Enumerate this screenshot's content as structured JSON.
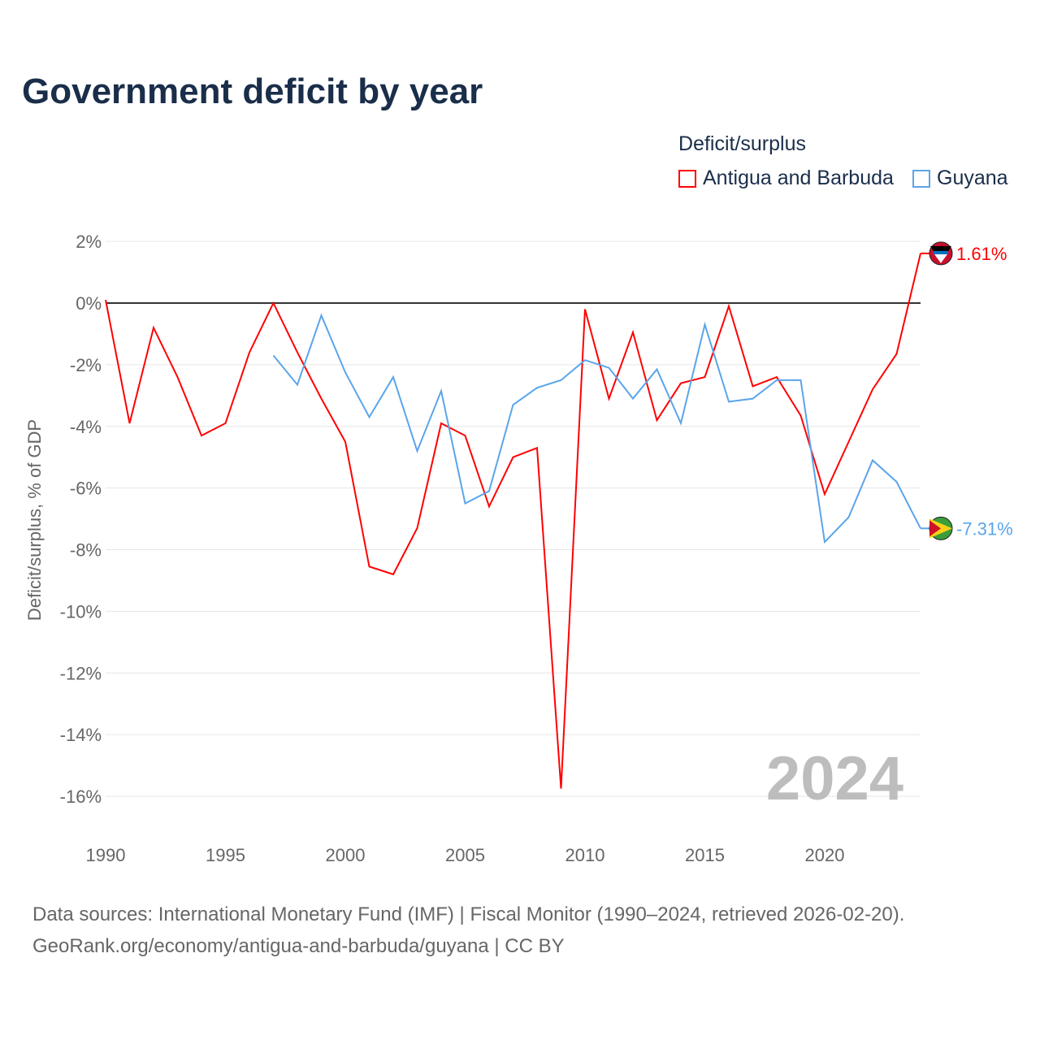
{
  "title": "Government deficit by year",
  "legend": {
    "title": "Deficit/surplus"
  },
  "footer": {
    "line1": "Data sources: International Monetary Fund (IMF) | Fiscal Monitor (1990–2024, retrieved 2026-02-20).",
    "line2": "GeoRank.org/economy/antigua-and-barbuda/guyana | CC BY"
  },
  "chart_data": {
    "type": "line",
    "title": "Government deficit by year",
    "ylabel": "Deficit/surplus, % of GDP",
    "xlabel": "",
    "xlim": [
      1990,
      2024
    ],
    "ylim": [
      -17,
      2.5
    ],
    "xticks": [
      1990,
      1995,
      2000,
      2005,
      2010,
      2015,
      2020
    ],
    "yticks": [
      2,
      0,
      -2,
      -4,
      -6,
      -8,
      -10,
      -12,
      -14,
      -16
    ],
    "year_watermark": "2024",
    "series": [
      {
        "name": "Antigua and Barbuda",
        "color": "#ff0000",
        "end_label": "1.61%",
        "x": [
          1990,
          1991,
          1992,
          1993,
          1994,
          1995,
          1996,
          1997,
          1998,
          1999,
          2000,
          2001,
          2002,
          2003,
          2004,
          2005,
          2006,
          2007,
          2008,
          2009,
          2010,
          2011,
          2012,
          2013,
          2014,
          2015,
          2016,
          2017,
          2018,
          2019,
          2020,
          2021,
          2022,
          2023,
          2024
        ],
        "values": [
          0.1,
          -3.9,
          -0.8,
          -2.4,
          -4.3,
          -3.9,
          -1.6,
          0.0,
          -1.6,
          -3.1,
          -4.5,
          -8.55,
          -8.8,
          -7.3,
          -3.9,
          -4.3,
          -6.6,
          -5.0,
          -4.7,
          -15.75,
          -0.2,
          -3.1,
          -0.95,
          -3.8,
          -2.6,
          -2.4,
          -0.1,
          -2.7,
          -2.4,
          -3.65,
          -6.2,
          -4.5,
          -2.8,
          -1.65,
          1.61
        ]
      },
      {
        "name": "Guyana",
        "color": "#5aa5ea",
        "end_label": "-7.31%",
        "x": [
          1997,
          1998,
          1999,
          2000,
          2001,
          2002,
          2003,
          2004,
          2005,
          2006,
          2007,
          2008,
          2009,
          2010,
          2011,
          2012,
          2013,
          2014,
          2015,
          2016,
          2017,
          2018,
          2019,
          2020,
          2021,
          2022,
          2023,
          2024
        ],
        "values": [
          -1.7,
          -2.65,
          -0.4,
          -2.25,
          -3.7,
          -2.4,
          -4.8,
          -2.85,
          -6.5,
          -6.1,
          -3.3,
          -2.75,
          -2.5,
          -1.85,
          -2.1,
          -3.1,
          -2.15,
          -3.9,
          -0.7,
          -3.2,
          -3.1,
          -2.5,
          -2.5,
          -7.75,
          -6.95,
          -5.1,
          -5.8,
          -7.31
        ]
      }
    ]
  }
}
